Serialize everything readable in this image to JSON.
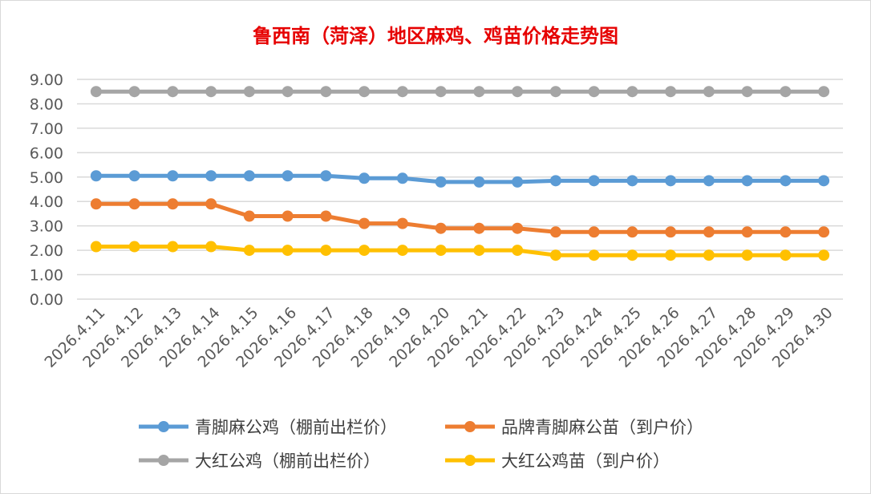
{
  "chart_data": {
    "type": "line",
    "title": "鲁西南（菏泽）地区麻鸡、鸡苗价格走势图",
    "xlabel": "",
    "ylabel": "",
    "ylim": [
      0,
      9
    ],
    "yticks": [
      "0.00",
      "1.00",
      "2.00",
      "3.00",
      "4.00",
      "5.00",
      "6.00",
      "7.00",
      "8.00",
      "9.00"
    ],
    "grid": true,
    "legend_position": "bottom",
    "categories": [
      "2026.4.11",
      "2026.4.12",
      "2026.4.13",
      "2026.4.14",
      "2026.4.15",
      "2026.4.16",
      "2026.4.17",
      "2026.4.18",
      "2026.4.19",
      "2026.4.20",
      "2026.4.21",
      "2026.4.22",
      "2026.4.23",
      "2026.4.24",
      "2026.4.25",
      "2026.4.26",
      "2026.4.27",
      "2026.4.28",
      "2026.4.29",
      "2026.4.30"
    ],
    "series": [
      {
        "name": "青脚麻公鸡（棚前出栏价）",
        "color": "#5b9bd5",
        "values": [
          5.05,
          5.05,
          5.05,
          5.05,
          5.05,
          5.05,
          5.05,
          4.95,
          4.95,
          4.8,
          4.8,
          4.8,
          4.85,
          4.85,
          4.85,
          4.85,
          4.85,
          4.85,
          4.85,
          4.85
        ]
      },
      {
        "name": "品牌青脚麻公苗（到户价）",
        "color": "#ed7d31",
        "values": [
          3.9,
          3.9,
          3.9,
          3.9,
          3.4,
          3.4,
          3.4,
          3.1,
          3.1,
          2.9,
          2.9,
          2.9,
          2.75,
          2.75,
          2.75,
          2.75,
          2.75,
          2.75,
          2.75,
          2.75
        ]
      },
      {
        "name": "大红公鸡（棚前出栏价）",
        "color": "#a5a5a5",
        "values": [
          8.5,
          8.5,
          8.5,
          8.5,
          8.5,
          8.5,
          8.5,
          8.5,
          8.5,
          8.5,
          8.5,
          8.5,
          8.5,
          8.5,
          8.5,
          8.5,
          8.5,
          8.5,
          8.5,
          8.5
        ]
      },
      {
        "name": "大红公鸡苗（到户价）",
        "color": "#ffc000",
        "values": [
          2.15,
          2.15,
          2.15,
          2.15,
          2.0,
          2.0,
          2.0,
          2.0,
          2.0,
          2.0,
          2.0,
          2.0,
          1.8,
          1.8,
          1.8,
          1.8,
          1.8,
          1.8,
          1.8,
          1.8
        ]
      }
    ]
  }
}
